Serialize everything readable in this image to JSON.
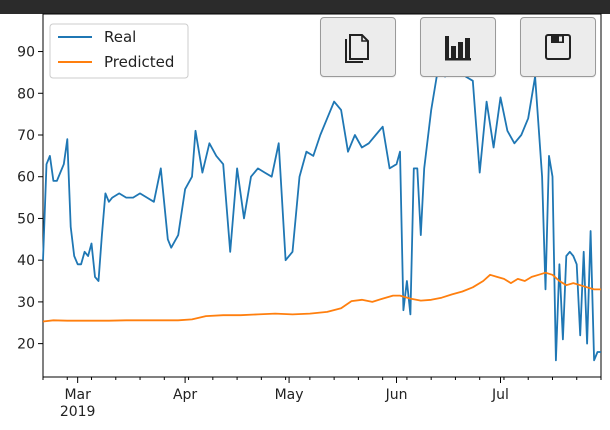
{
  "toolbar": {
    "buttons": [
      {
        "icon": "copy-icon"
      },
      {
        "icon": "bar-chart-icon"
      },
      {
        "icon": "save-icon"
      }
    ]
  },
  "colors": {
    "real": "#1f77b4",
    "predicted": "#ff7f0e"
  },
  "chart_data": {
    "type": "line",
    "title": "",
    "xlabel": "",
    "ylabel": "",
    "ylim": [
      12,
      99
    ],
    "xlim": [
      "2019-02-19",
      "2019-07-30"
    ],
    "yticks": [
      20,
      30,
      40,
      50,
      60,
      70,
      80,
      90
    ],
    "xticks": [
      {
        "date": "2019-03-01",
        "label": "Mar",
        "sublabel": "2019"
      },
      {
        "date": "2019-04-01",
        "label": "Apr",
        "sublabel": ""
      },
      {
        "date": "2019-05-01",
        "label": "May",
        "sublabel": ""
      },
      {
        "date": "2019-06-01",
        "label": "Jun",
        "sublabel": ""
      },
      {
        "date": "2019-07-01",
        "label": "Jul",
        "sublabel": ""
      }
    ],
    "legend": {
      "position": "top-left"
    },
    "grid": false,
    "series": [
      {
        "name": "Real",
        "color": "#1f77b4",
        "x": [
          "2019-02-19",
          "2019-02-20",
          "2019-02-21",
          "2019-02-22",
          "2019-02-23",
          "2019-02-24",
          "2019-02-25",
          "2019-02-26",
          "2019-02-27",
          "2019-02-28",
          "2019-03-01",
          "2019-03-02",
          "2019-03-03",
          "2019-03-04",
          "2019-03-05",
          "2019-03-06",
          "2019-03-07",
          "2019-03-08",
          "2019-03-09",
          "2019-03-10",
          "2019-03-11",
          "2019-03-13",
          "2019-03-15",
          "2019-03-17",
          "2019-03-19",
          "2019-03-21",
          "2019-03-23",
          "2019-03-25",
          "2019-03-27",
          "2019-03-28",
          "2019-03-30",
          "2019-04-01",
          "2019-04-03",
          "2019-04-04",
          "2019-04-06",
          "2019-04-08",
          "2019-04-10",
          "2019-04-12",
          "2019-04-14",
          "2019-04-16",
          "2019-04-18",
          "2019-04-20",
          "2019-04-22",
          "2019-04-24",
          "2019-04-26",
          "2019-04-28",
          "2019-04-30",
          "2019-05-02",
          "2019-05-04",
          "2019-05-06",
          "2019-05-08",
          "2019-05-10",
          "2019-05-12",
          "2019-05-14",
          "2019-05-16",
          "2019-05-18",
          "2019-05-20",
          "2019-05-22",
          "2019-05-24",
          "2019-05-26",
          "2019-05-28",
          "2019-05-30",
          "2019-06-01",
          "2019-06-02",
          "2019-06-03",
          "2019-06-04",
          "2019-06-05",
          "2019-06-06",
          "2019-06-07",
          "2019-06-08",
          "2019-06-09",
          "2019-06-11",
          "2019-06-13",
          "2019-06-15",
          "2019-06-17",
          "2019-06-19",
          "2019-06-21",
          "2019-06-23",
          "2019-06-25",
          "2019-06-27",
          "2019-06-29",
          "2019-07-01",
          "2019-07-03",
          "2019-07-05",
          "2019-07-07",
          "2019-07-09",
          "2019-07-11",
          "2019-07-13",
          "2019-07-14",
          "2019-07-15",
          "2019-07-16",
          "2019-07-17",
          "2019-07-18",
          "2019-07-19",
          "2019-07-20",
          "2019-07-21",
          "2019-07-22",
          "2019-07-23",
          "2019-07-24",
          "2019-07-25",
          "2019-07-26",
          "2019-07-27",
          "2019-07-28",
          "2019-07-29",
          "2019-07-30"
        ],
        "values": [
          40,
          63,
          65,
          59,
          59,
          61,
          63,
          69,
          48,
          41,
          39,
          39,
          42,
          41,
          44,
          36,
          35,
          46,
          56,
          54,
          55,
          56,
          55,
          55,
          56,
          55,
          54,
          62,
          45,
          43,
          46,
          57,
          60,
          71,
          61,
          68,
          65,
          63,
          42,
          62,
          50,
          60,
          62,
          61,
          60,
          68,
          40,
          42,
          60,
          66,
          65,
          70,
          74,
          78,
          76,
          66,
          70,
          67,
          68,
          70,
          72,
          62,
          63,
          66,
          28,
          35,
          27,
          62,
          62,
          46,
          62,
          76,
          86,
          84,
          88,
          89,
          84,
          83,
          61,
          78,
          67,
          79,
          71,
          68,
          70,
          74,
          84,
          60,
          33,
          65,
          60,
          16,
          39,
          21,
          41,
          42,
          41,
          39,
          22,
          42,
          20,
          47,
          16,
          18,
          18
        ]
      },
      {
        "name": "Predicted",
        "color": "#ff7f0e",
        "x": [
          "2019-02-19",
          "2019-02-22",
          "2019-02-26",
          "2019-03-01",
          "2019-03-05",
          "2019-03-10",
          "2019-03-15",
          "2019-03-20",
          "2019-03-25",
          "2019-03-30",
          "2019-04-03",
          "2019-04-07",
          "2019-04-12",
          "2019-04-17",
          "2019-04-22",
          "2019-04-27",
          "2019-05-02",
          "2019-05-07",
          "2019-05-12",
          "2019-05-16",
          "2019-05-19",
          "2019-05-22",
          "2019-05-25",
          "2019-05-28",
          "2019-05-31",
          "2019-06-02",
          "2019-06-05",
          "2019-06-08",
          "2019-06-11",
          "2019-06-14",
          "2019-06-17",
          "2019-06-20",
          "2019-06-23",
          "2019-06-26",
          "2019-06-28",
          "2019-06-30",
          "2019-07-02",
          "2019-07-04",
          "2019-07-06",
          "2019-07-08",
          "2019-07-10",
          "2019-07-12",
          "2019-07-14",
          "2019-07-16",
          "2019-07-18",
          "2019-07-20",
          "2019-07-22",
          "2019-07-24",
          "2019-07-26",
          "2019-07-28",
          "2019-07-30"
        ],
        "values": [
          25.3,
          25.6,
          25.5,
          25.5,
          25.5,
          25.5,
          25.6,
          25.6,
          25.6,
          25.6,
          25.8,
          26.6,
          26.8,
          26.8,
          27.0,
          27.2,
          27.0,
          27.2,
          27.6,
          28.5,
          30.2,
          30.5,
          30.0,
          30.8,
          31.5,
          31.5,
          30.8,
          30.3,
          30.5,
          31.0,
          31.8,
          32.5,
          33.5,
          35.0,
          36.5,
          36.0,
          35.5,
          34.5,
          35.5,
          35.0,
          36.0,
          36.5,
          37.0,
          36.5,
          35.0,
          34.0,
          34.5,
          34.0,
          33.5,
          33.0,
          33.0
        ]
      }
    ]
  }
}
